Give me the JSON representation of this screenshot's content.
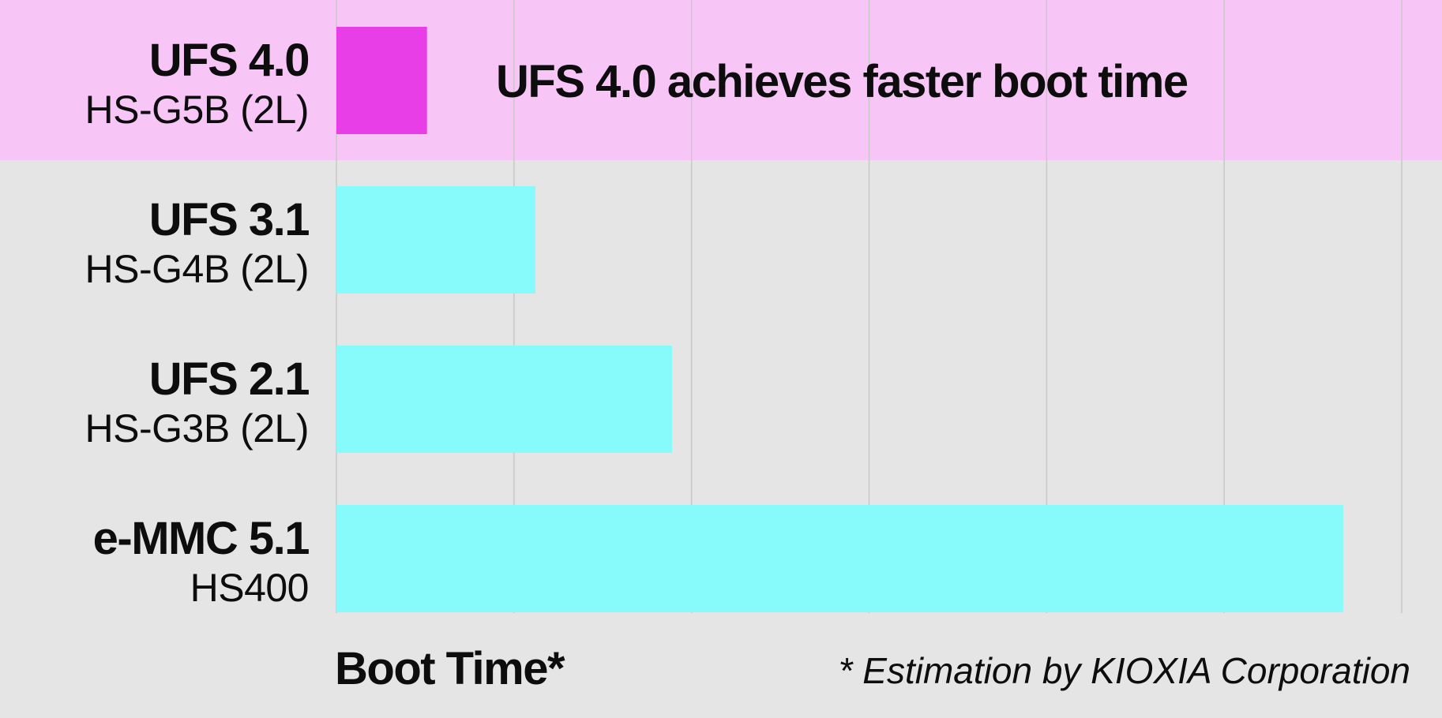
{
  "chart_data": {
    "type": "bar",
    "orientation": "horizontal",
    "categories": [
      {
        "name": "UFS 4.0",
        "sub": "HS-G5B (2L)"
      },
      {
        "name": "UFS 3.1",
        "sub": "HS-G4B (2L)"
      },
      {
        "name": "UFS 2.1",
        "sub": "HS-G3B (2L)"
      },
      {
        "name": "e-MMC 5.1",
        "sub": "HS400"
      }
    ],
    "values": [
      0.51,
      1.12,
      1.89,
      5.67
    ],
    "highlight_index": 0,
    "xlim": [
      0,
      6
    ],
    "grid": true,
    "xlabel": "Boot Time*",
    "annotation": "UFS 4.0 achieves faster boot time",
    "note": "* Estimation by KIOXIA Corporation",
    "colors": {
      "background": "#e5e5e5",
      "highlight_band": "#f7c6f7",
      "highlight_bar": "#e83ee8",
      "bar": "#87fbfb",
      "grid": "#c8c8c8",
      "text": "#0d0d0d"
    }
  }
}
